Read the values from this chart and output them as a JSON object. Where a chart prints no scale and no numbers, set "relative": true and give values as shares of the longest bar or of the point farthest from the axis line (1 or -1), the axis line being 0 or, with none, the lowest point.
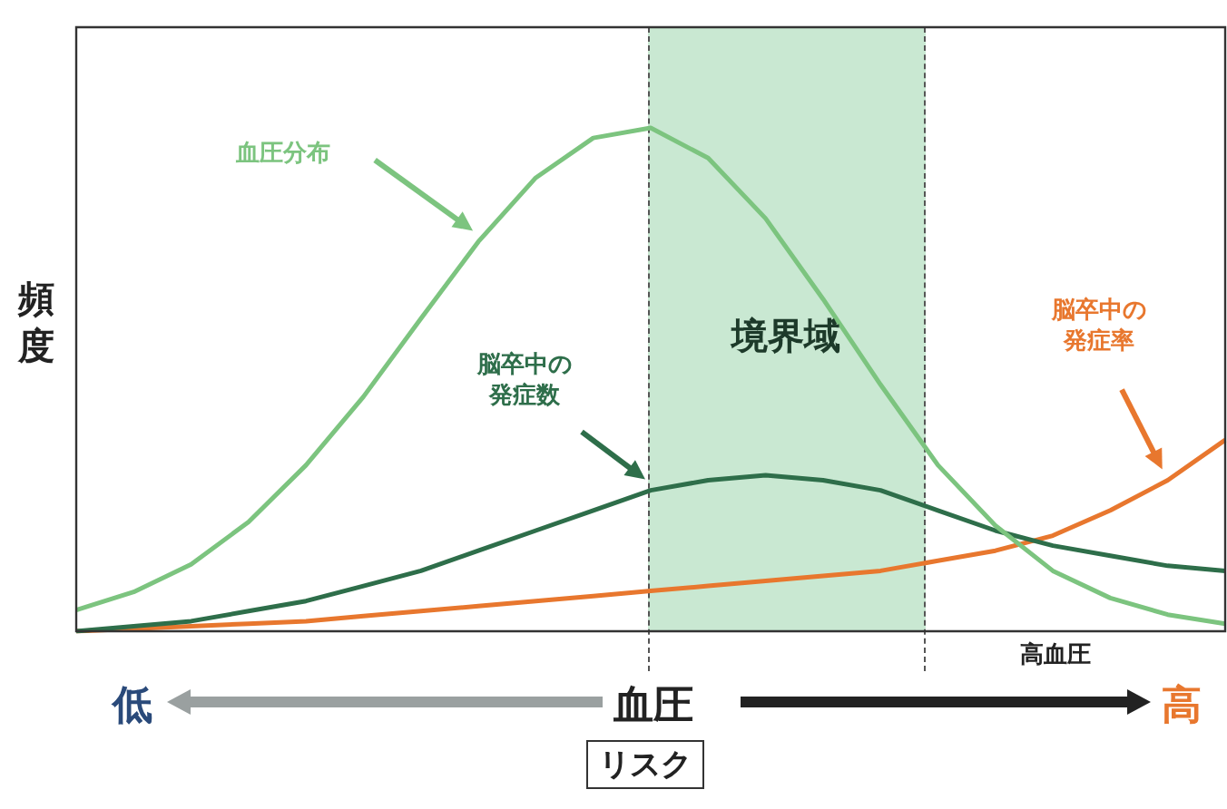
{
  "chart_data": {
    "type": "line",
    "relative": true,
    "ylabel": "頻度",
    "xlabel": "血圧",
    "categories": [
      null,
      null,
      null,
      null,
      null,
      null,
      null,
      null,
      null,
      null,
      null,
      null,
      null,
      null,
      null,
      null,
      null,
      null,
      null,
      null,
      null
    ],
    "marker": "none",
    "line_style": "solid",
    "series": [
      {
        "name": "血圧分布",
        "color": "#7cc47f",
        "values": [
          0.042,
          0.078,
          0.133,
          0.217,
          0.33,
          0.466,
          0.621,
          0.774,
          0.901,
          0.98,
          1,
          0.94,
          0.82,
          0.66,
          0.49,
          0.33,
          0.21,
          0.12,
          0.066,
          0.033,
          0.015
        ]
      },
      {
        "name": "脳卒中の発症数",
        "color": "#2e6e4a",
        "values": [
          0,
          0.01,
          0.02,
          0.04,
          0.06,
          0.09,
          0.12,
          0.16,
          0.2,
          0.24,
          0.28,
          0.3,
          0.31,
          0.3,
          0.28,
          0.24,
          0.2,
          0.17,
          0.15,
          0.13,
          0.12
        ]
      },
      {
        "name": "脳卒中の発症率",
        "color": "#e8772e",
        "values": [
          0,
          0.005,
          0.01,
          0.015,
          0.02,
          0.03,
          0.04,
          0.05,
          0.06,
          0.07,
          0.08,
          0.09,
          0.1,
          0.11,
          0.12,
          0.14,
          0.16,
          0.19,
          0.24,
          0.3,
          0.38
        ]
      }
    ],
    "annotations": [
      "境界域",
      "高血圧",
      "低",
      "高",
      "リスク"
    ]
  }
}
